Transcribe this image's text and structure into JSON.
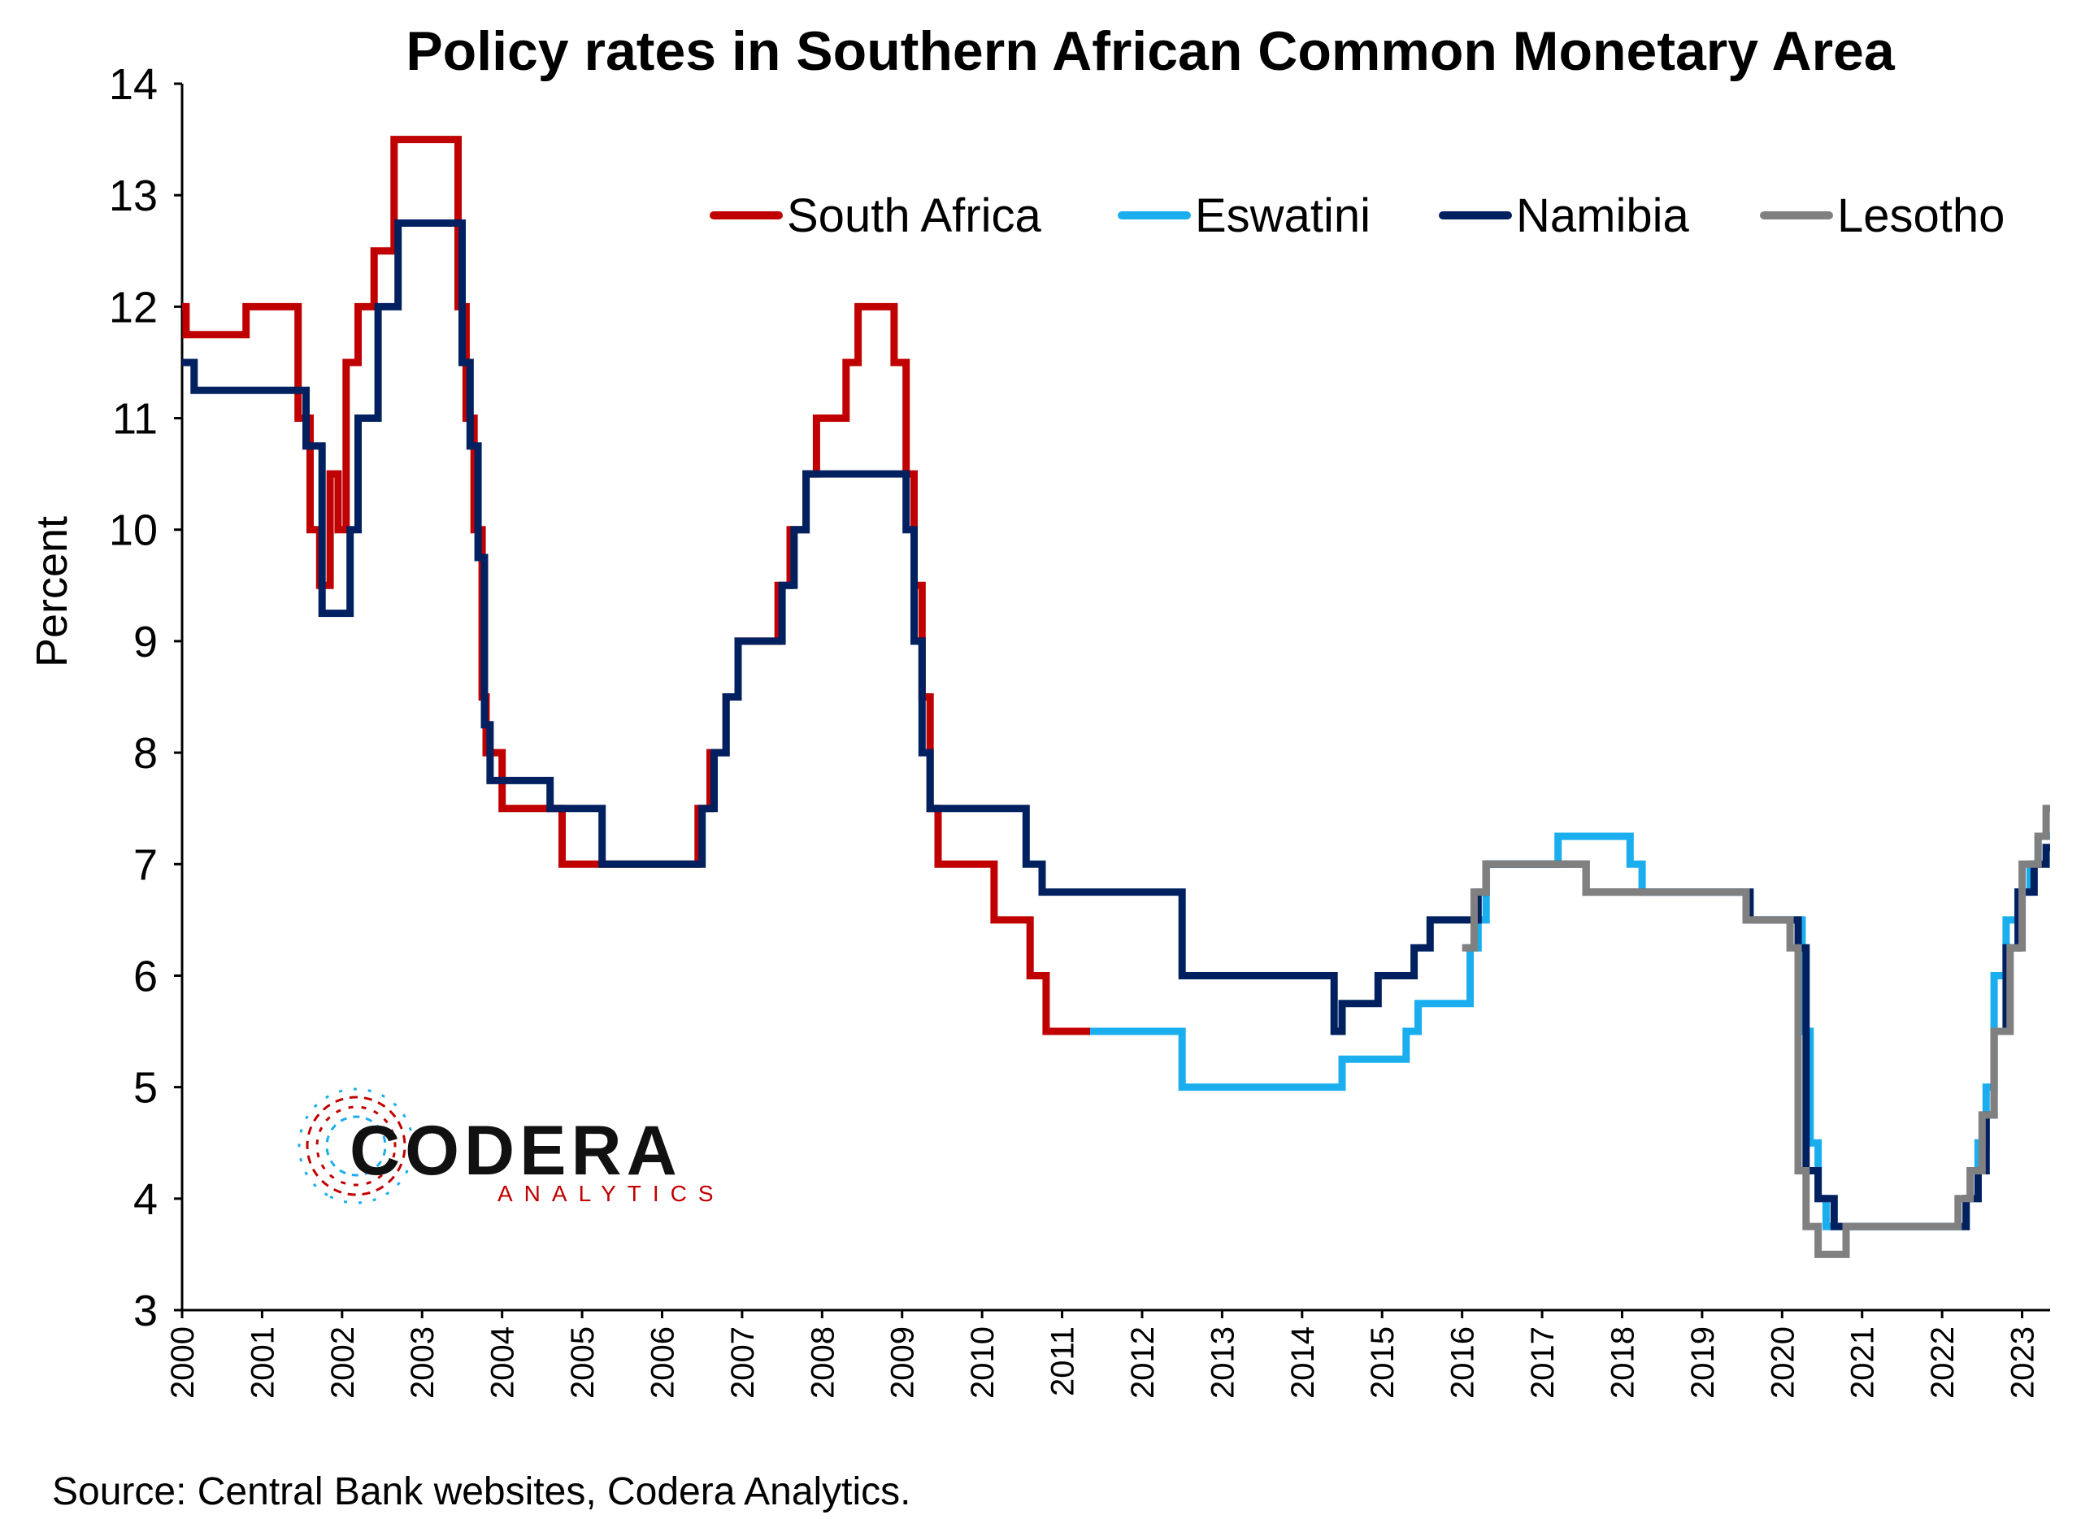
{
  "chart_data": {
    "type": "line",
    "title": "Policy rates in Southern African Common Monetary Area",
    "ylabel": "Percent",
    "xlabel": "",
    "ylim": [
      3,
      14
    ],
    "yticks": [
      "3",
      "4",
      "5",
      "6",
      "7",
      "8",
      "9",
      "10",
      "11",
      "12",
      "13",
      "14"
    ],
    "xlim": [
      2000,
      2023.35
    ],
    "xticks": [
      "2000",
      "2001",
      "2002",
      "2003",
      "2004",
      "2005",
      "2006",
      "2007",
      "2008",
      "2009",
      "2010",
      "2011",
      "2012",
      "2013",
      "2014",
      "2015",
      "2016",
      "2017",
      "2018",
      "2019",
      "2020",
      "2021",
      "2022",
      "2023"
    ],
    "legend_position": "top-right",
    "grid": false,
    "series": [
      {
        "name": "South Africa",
        "color": "#c00000",
        "step": true,
        "x": [
          2000,
          2000.05,
          2000.8,
          2001.45,
          2001.6,
          2001.72,
          2001.85,
          2001.95,
          2002.05,
          2002.2,
          2002.4,
          2002.65,
          2002.85,
          2003.45,
          2003.55,
          2003.65,
          2003.75,
          2003.8,
          2003.9,
          2004.0,
          2004.6,
          2004.75,
          2006.45,
          2006.6,
          2006.8,
          2006.95,
          2007.45,
          2007.6,
          2007.8,
          2007.93,
          2008.3,
          2008.45,
          2008.55,
          2008.9,
          2009.05,
          2009.15,
          2009.25,
          2009.35,
          2009.45,
          2009.6,
          2010.15,
          2010.6,
          2010.8,
          2010.95,
          2011.35
        ],
        "y": [
          12,
          11.75,
          12,
          11,
          10,
          9.5,
          10.5,
          10,
          11.5,
          12,
          12.5,
          13.5,
          13.5,
          12,
          11,
          10,
          8.5,
          8,
          8,
          7.5,
          7.5,
          7,
          7.5,
          8,
          8.5,
          9,
          9.5,
          10,
          10.5,
          11,
          11.5,
          12,
          12,
          11.5,
          10.5,
          9.5,
          8.5,
          7.5,
          7,
          7,
          6.5,
          6,
          5.5,
          5.5,
          5.5
        ]
      },
      {
        "name": "Eswatini",
        "color": "#1aaeef",
        "step": true,
        "x": [
          2011.35,
          2012.5,
          2014.5,
          2015.3,
          2015.45,
          2015.6,
          2016.1,
          2016.2,
          2016.3,
          2017.2,
          2017.7,
          2018.1,
          2018.25,
          2019.55,
          2020.2,
          2020.25,
          2020.35,
          2020.45,
          2020.55,
          2020.75,
          2022.0,
          2022.3,
          2022.45,
          2022.55,
          2022.65,
          2022.8,
          2022.95,
          2023.1,
          2023.2,
          2023.35
        ],
        "y": [
          5.5,
          5,
          5.25,
          5.5,
          5.75,
          5.75,
          6.25,
          6.5,
          7,
          7.25,
          7.25,
          7,
          6.75,
          6.5,
          6.5,
          5.5,
          4.5,
          4,
          3.75,
          3.75,
          3.75,
          4,
          4.5,
          5,
          6,
          6.5,
          6.75,
          7,
          7.25,
          7.25
        ]
      },
      {
        "name": "Namibia",
        "color": "#002060",
        "step": true,
        "x": [
          2000,
          2000.15,
          2001.5,
          2001.55,
          2001.75,
          2002.1,
          2002.2,
          2002.45,
          2002.7,
          2003.35,
          2003.5,
          2003.6,
          2003.7,
          2003.78,
          2003.85,
          2004.6,
          2005.25,
          2006.35,
          2006.5,
          2006.65,
          2006.8,
          2006.95,
          2007.5,
          2007.65,
          2007.8,
          2008.15,
          2008.9,
          2009.05,
          2009.15,
          2009.25,
          2009.35,
          2010.55,
          2010.75,
          2012.5,
          2014.4,
          2014.5,
          2014.95,
          2015.4,
          2015.6,
          2016.2,
          2016.3,
          2017.55,
          2018.0,
          2019.6,
          2020.2,
          2020.3,
          2020.45,
          2020.65,
          2020.85,
          2022.0,
          2022.3,
          2022.45,
          2022.55,
          2022.65,
          2022.8,
          2022.95,
          2023.15,
          2023.3,
          2023.35
        ],
        "y": [
          11.5,
          11.25,
          11.25,
          10.75,
          9.25,
          10,
          11,
          12,
          12.75,
          12.75,
          11.5,
          10.75,
          9.75,
          8.25,
          7.75,
          7.5,
          7,
          7,
          7.5,
          8,
          8.5,
          9,
          9.5,
          10,
          10.5,
          10.5,
          10.5,
          10,
          9,
          8,
          7.5,
          7,
          6.75,
          6,
          5.5,
          5.75,
          6,
          6.25,
          6.5,
          6.75,
          7,
          6.75,
          6.75,
          6.5,
          6.25,
          4.25,
          4,
          3.75,
          3.75,
          3.75,
          4,
          4.25,
          4.75,
          5.5,
          6.25,
          6.75,
          7,
          7.15,
          7.15
        ]
      },
      {
        "name": "Lesotho",
        "color": "#808080",
        "step": true,
        "x": [
          2016.0,
          2016.15,
          2016.3,
          2017.55,
          2019.55,
          2020.1,
          2020.2,
          2020.3,
          2020.45,
          2020.6,
          2020.8,
          2022.0,
          2022.2,
          2022.35,
          2022.5,
          2022.65,
          2022.85,
          2023.0,
          2023.2,
          2023.3,
          2023.35
        ],
        "y": [
          6.25,
          6.75,
          7,
          6.75,
          6.5,
          6.25,
          4.25,
          3.75,
          3.5,
          3.5,
          3.75,
          3.75,
          4,
          4.25,
          4.75,
          5.5,
          6.25,
          7,
          7.25,
          7.5,
          7.5
        ]
      }
    ]
  },
  "logo": {
    "word": "CODERA",
    "sub": "ANALYTICS",
    "colors": [
      "#c00000",
      "#1aaeef"
    ]
  },
  "source": "Source: Central Bank websites, Codera Analytics."
}
